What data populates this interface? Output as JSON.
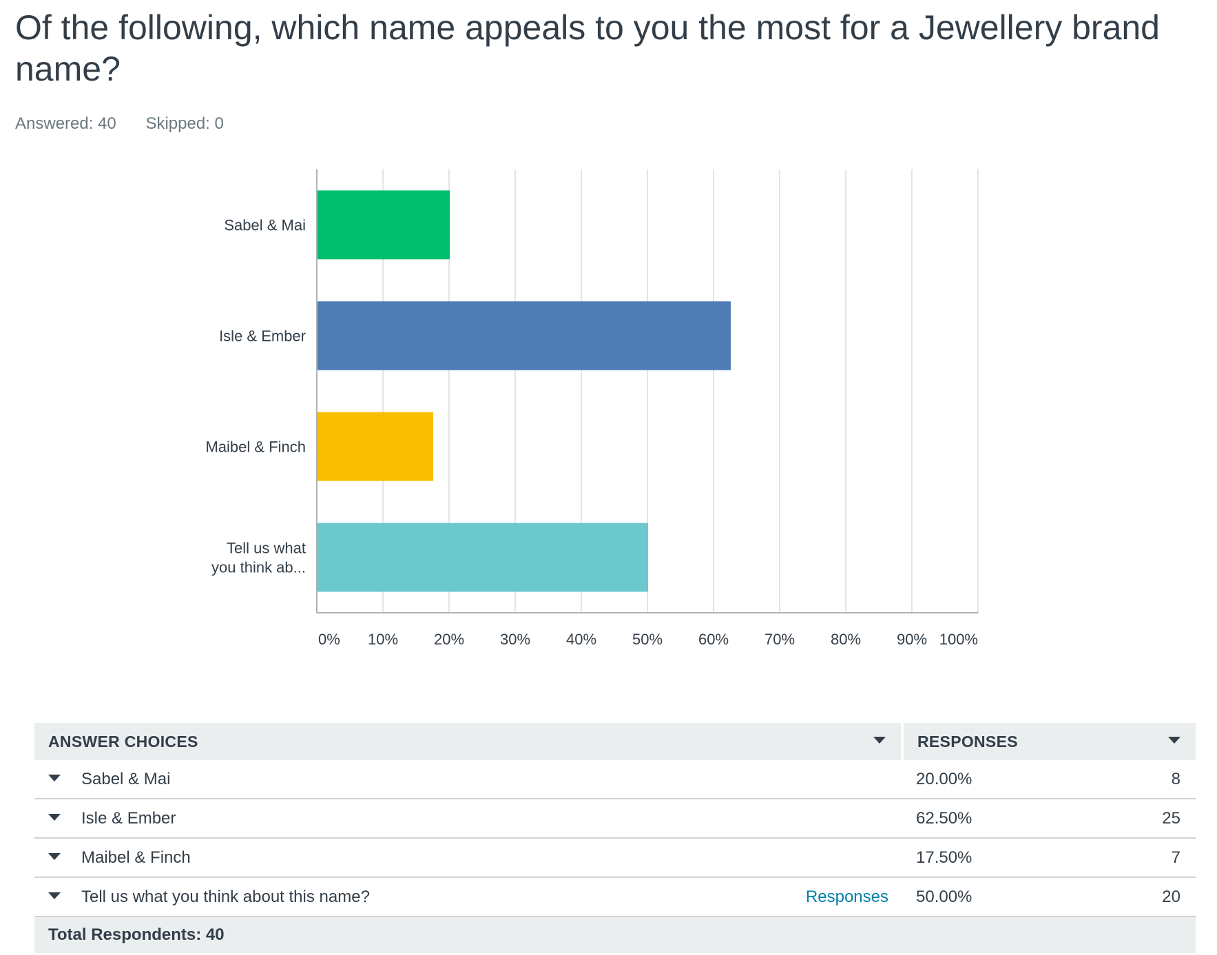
{
  "question": {
    "title": "Of the following, which name appeals to you the most for a Jewellery brand name?",
    "answered_label": "Answered: 40",
    "skipped_label": "Skipped: 0"
  },
  "colors": {
    "bars": [
      "#00bf6f",
      "#507cb6",
      "#f9be00",
      "#6bc8cd"
    ],
    "text": "#333e48",
    "muted": "#6b787f",
    "link": "#007faa",
    "grid": "#d9dcdd",
    "header_bg": "#ebeeef"
  },
  "chart_data": {
    "type": "bar",
    "orientation": "horizontal",
    "categories": [
      "Sabel & Mai",
      "Isle & Ember",
      "Maibel & Finch",
      "Tell us what you think ab..."
    ],
    "category_lines": [
      [
        "Sabel & Mai"
      ],
      [
        "Isle & Ember"
      ],
      [
        "Maibel & Finch"
      ],
      [
        "Tell us what",
        "you think ab..."
      ]
    ],
    "values": [
      20.0,
      62.5,
      17.5,
      50.0
    ],
    "xlim": [
      0,
      100
    ],
    "xticks": [
      "0%",
      "10%",
      "20%",
      "30%",
      "40%",
      "50%",
      "60%",
      "70%",
      "80%",
      "90%",
      "100%"
    ],
    "grid": true,
    "legend": "none"
  },
  "table": {
    "headers": {
      "choice": "ANSWER CHOICES",
      "responses": "RESPONSES"
    },
    "rows": [
      {
        "choice": "Sabel & Mai",
        "percent": "20.00%",
        "count": "8",
        "link": ""
      },
      {
        "choice": "Isle & Ember",
        "percent": "62.50%",
        "count": "25",
        "link": ""
      },
      {
        "choice": "Maibel & Finch",
        "percent": "17.50%",
        "count": "7",
        "link": ""
      },
      {
        "choice": "Tell us what you think about this name?",
        "percent": "50.00%",
        "count": "20",
        "link": "Responses"
      }
    ],
    "total_label": "Total Respondents: 40"
  }
}
